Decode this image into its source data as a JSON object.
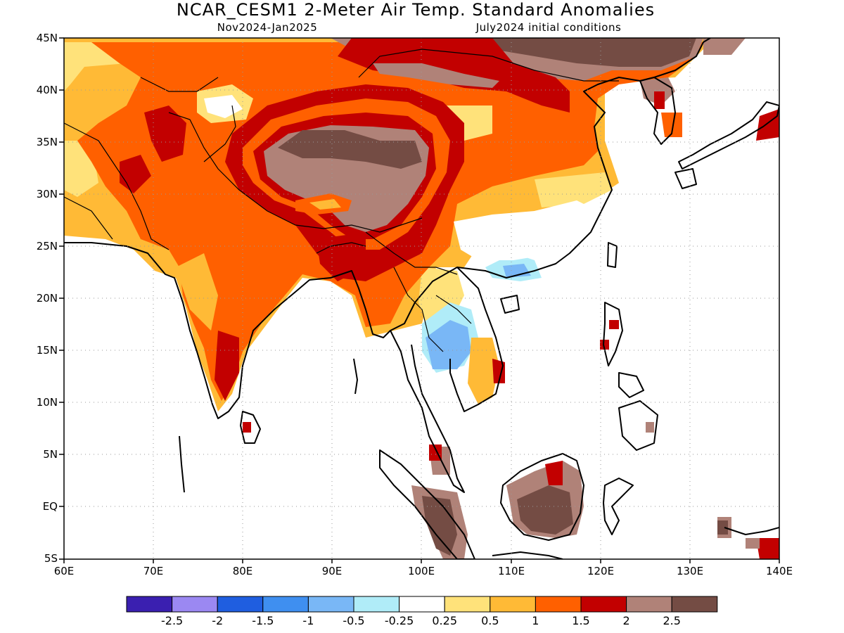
{
  "title": "NCAR_CESM1 2-Meter Air Temp. Standard Anomalies",
  "period": "Nov2024-Jan2025",
  "initial_conditions": "July2024 initial conditions",
  "map": {
    "lon_range": [
      60,
      140
    ],
    "lat_range": [
      -5,
      45
    ],
    "lon_ticks": [
      "60E",
      "70E",
      "80E",
      "90E",
      "100E",
      "110E",
      "120E",
      "130E",
      "140E"
    ],
    "lat_ticks": [
      "45N",
      "40N",
      "35N",
      "30N",
      "25N",
      "20N",
      "15N",
      "10N",
      "5N",
      "EQ",
      "5S"
    ]
  },
  "colorbar": {
    "colors": [
      "#3a1fb0",
      "#9b88f2",
      "#1f5ee0",
      "#3f8ff0",
      "#79b7f6",
      "#b0ecf8",
      "#ffffff",
      "#ffe27a",
      "#ffba36",
      "#ff6000",
      "#c20000",
      "#b08278",
      "#744c44"
    ],
    "labels": [
      "-2.5",
      "-2",
      "-1.5",
      "-1",
      "-0.5",
      "-0.25",
      "0.25",
      "0.5",
      "1",
      "1.5",
      "2",
      "2.5"
    ]
  },
  "colors": {
    "very_warm": "#744c44",
    "warm_2": "#b08278",
    "warm_15": "#c20000",
    "warm_1": "#ff6000",
    "warm_05": "#ffba36",
    "warm_025": "#ffe27a",
    "cool_025": "#b0ecf8",
    "cool_05": "#79b7f6",
    "cool_1": "#3f8ff0"
  }
}
